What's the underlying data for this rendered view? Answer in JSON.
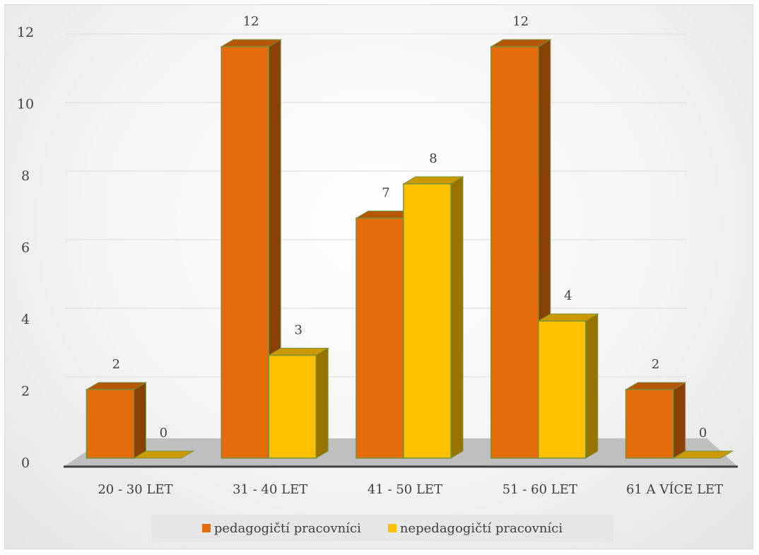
{
  "chart_data": {
    "type": "bar",
    "categories": [
      "20 - 30 LET",
      "31 - 40 LET",
      "41 - 50 LET",
      "51 - 60 LET",
      "61 A VÍCE LET"
    ],
    "series": [
      {
        "name": "pedagogičtí pracovníci",
        "values": [
          2,
          12,
          7,
          12,
          2
        ],
        "color": "#E46C0A"
      },
      {
        "name": "nepedagogičtí pracovníci",
        "values": [
          0,
          3,
          8,
          4,
          0
        ],
        "color": "#FFC000"
      }
    ],
    "ylim": [
      0,
      12
    ],
    "yticks": [
      "0",
      "2",
      "4",
      "6",
      "8",
      "10",
      "12"
    ],
    "grid": true,
    "legend_position": "bottom",
    "data_labels": true,
    "style": "3d-clustered-column"
  }
}
